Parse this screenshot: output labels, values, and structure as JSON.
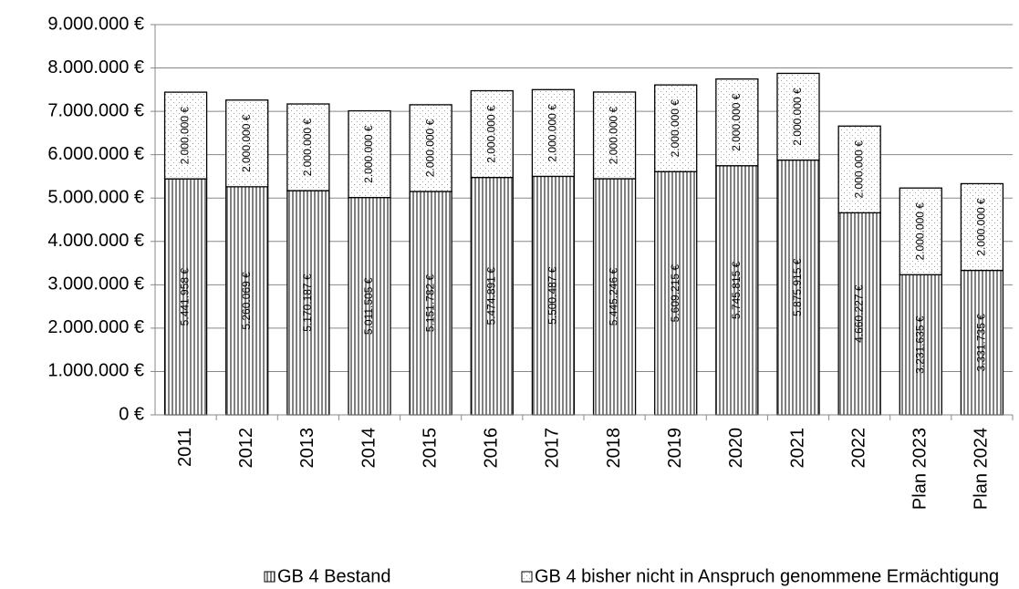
{
  "chart_data": {
    "type": "stacked_bar",
    "categories": [
      "2011",
      "2012",
      "2013",
      "2014",
      "2015",
      "2016",
      "2017",
      "2018",
      "2019",
      "2020",
      "2021",
      "2022",
      "Plan 2023",
      "Plan 2024"
    ],
    "series": [
      {
        "name": "GB 4 Bestand",
        "color": "#808080",
        "values": [
          5441958,
          5260069,
          5170187,
          5011505,
          5151782,
          5474891,
          5500487,
          5445246,
          5609215,
          5745815,
          5875915,
          4660227,
          3231635,
          3331735
        ],
        "value_labels": [
          "5.441.958 €",
          "5.260.069 €",
          "5.170.187 €",
          "5.011.505 €",
          "5.151.782 €",
          "5.474.891 €",
          "5.500.487 €",
          "5.445.246 €",
          "5.609.215 €",
          "5.745.815 €",
          "5.875.915 €",
          "4.660.227 €",
          "3.231.635 €",
          "3.331.735 €"
        ]
      },
      {
        "name": "GB 4 bisher nicht in Anspruch genommene Ermächtigung",
        "color": "#a0a0a0",
        "values": [
          2000000,
          2000000,
          2000000,
          2000000,
          2000000,
          2000000,
          2000000,
          2000000,
          2000000,
          2000000,
          2000000,
          2000000,
          2000000,
          2000000
        ],
        "value_labels": [
          "2.000.000 €",
          "2.000.000 €",
          "2.000.000 €",
          "2.000.000 €",
          "2.000.000 €",
          "2.000.000 €",
          "2.000.000 €",
          "2.000.000 €",
          "2.000.000 €",
          "2.000.000 €",
          "2.000.000 €",
          "2.000.000 €",
          "2.000.000 €",
          "2.000.000 €"
        ]
      }
    ],
    "ylim": [
      0,
      9000000
    ],
    "yticks": [
      {
        "value": 0,
        "label": "0 €"
      },
      {
        "value": 1000000,
        "label": "1.000.000 €"
      },
      {
        "value": 2000000,
        "label": "2.000.000 €"
      },
      {
        "value": 3000000,
        "label": "3.000.000 €"
      },
      {
        "value": 4000000,
        "label": "4.000.000 €"
      },
      {
        "value": 5000000,
        "label": "5.000.000 €"
      },
      {
        "value": 6000000,
        "label": "6.000.000 €"
      },
      {
        "value": 7000000,
        "label": "7.000.000 €"
      },
      {
        "value": 8000000,
        "label": "8.000.000 €"
      },
      {
        "value": 9000000,
        "label": "9.000.000 €"
      }
    ],
    "grid": true,
    "legend": "bottom"
  }
}
